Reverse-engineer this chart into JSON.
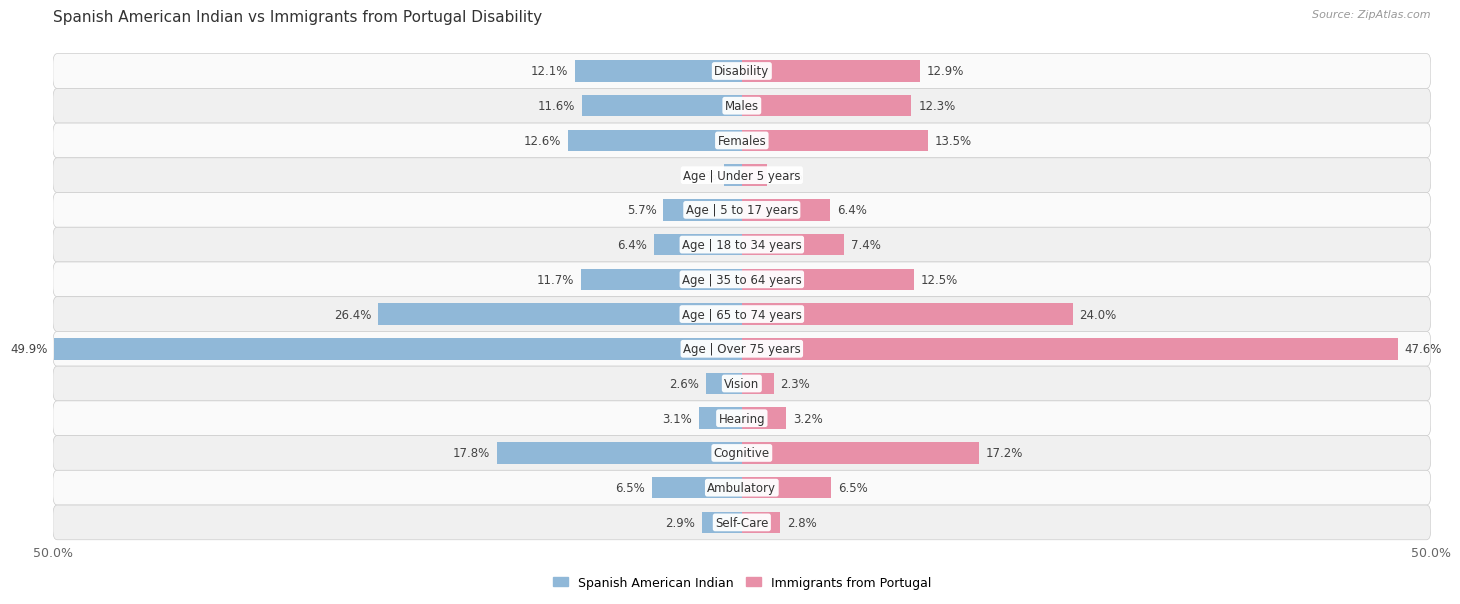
{
  "title": "Spanish American Indian vs Immigrants from Portugal Disability",
  "source": "Source: ZipAtlas.com",
  "categories": [
    "Disability",
    "Males",
    "Females",
    "Age | Under 5 years",
    "Age | 5 to 17 years",
    "Age | 18 to 34 years",
    "Age | 35 to 64 years",
    "Age | 65 to 74 years",
    "Age | Over 75 years",
    "Vision",
    "Hearing",
    "Cognitive",
    "Ambulatory",
    "Self-Care"
  ],
  "left_values": [
    12.1,
    11.6,
    12.6,
    1.3,
    5.7,
    6.4,
    11.7,
    26.4,
    49.9,
    2.6,
    3.1,
    17.8,
    6.5,
    2.9
  ],
  "right_values": [
    12.9,
    12.3,
    13.5,
    1.8,
    6.4,
    7.4,
    12.5,
    24.0,
    47.6,
    2.3,
    3.2,
    17.2,
    6.5,
    2.8
  ],
  "left_color": "#90b8d8",
  "right_color": "#e890a8",
  "left_label": "Spanish American Indian",
  "right_label": "Immigrants from Portugal",
  "axis_max": 50.0,
  "bg_color": "#ffffff",
  "row_bg_odd": "#f0f0f0",
  "row_bg_even": "#fafafa",
  "title_fontsize": 11,
  "label_fontsize": 8.5,
  "value_fontsize": 8.5,
  "legend_fontsize": 9,
  "source_fontsize": 8
}
